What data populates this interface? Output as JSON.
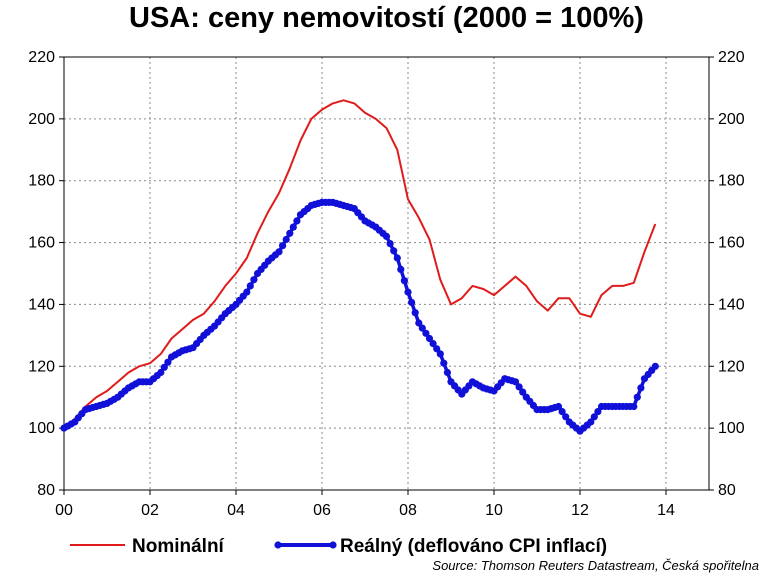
{
  "chart_data": {
    "type": "line",
    "title": "USA: ceny nemovitostí (2000 = 100%)",
    "source": "Source: Thomson Reuters Datastream, Česká spořitelna",
    "xlim": [
      0,
      15
    ],
    "ylim": [
      80,
      220
    ],
    "x_ticks": [
      0,
      2,
      4,
      6,
      8,
      10,
      12,
      14
    ],
    "x_tick_labels": [
      "00",
      "02",
      "04",
      "06",
      "08",
      "10",
      "12",
      "14"
    ],
    "y_ticks": [
      80,
      100,
      120,
      140,
      160,
      180,
      200,
      220
    ],
    "y_tick_labels": [
      "80",
      "100",
      "120",
      "140",
      "160",
      "180",
      "200",
      "220"
    ],
    "grid": true,
    "legend_position": "bottom",
    "colors": {
      "nominal": "#e11b1b",
      "real": "#1010d8"
    },
    "series": [
      {
        "name": "Nominální",
        "style": "line",
        "x": [
          0,
          0.25,
          0.5,
          0.75,
          1,
          1.25,
          1.5,
          1.75,
          2,
          2.25,
          2.5,
          2.75,
          3,
          3.25,
          3.5,
          3.75,
          4,
          4.25,
          4.5,
          4.75,
          5,
          5.25,
          5.5,
          5.75,
          6,
          6.25,
          6.5,
          6.75,
          7,
          7.25,
          7.5,
          7.75,
          8,
          8.25,
          8.5,
          8.75,
          9,
          9.25,
          9.5,
          9.75,
          10,
          10.25,
          10.5,
          10.75,
          11,
          11.25,
          11.5,
          11.75,
          12,
          12.25,
          12.5,
          12.75,
          13,
          13.25,
          13.5,
          13.75
        ],
        "values": [
          100,
          103,
          107,
          110,
          112,
          115,
          118,
          120,
          121,
          124,
          129,
          132,
          135,
          137,
          141,
          146,
          150,
          155,
          163,
          170,
          176,
          184,
          193,
          200,
          203,
          205,
          206,
          205,
          202,
          200,
          197,
          190,
          174,
          168,
          161,
          148,
          140,
          142,
          146,
          145,
          143,
          146,
          149,
          146,
          141,
          138,
          142,
          142,
          137,
          136,
          143,
          146,
          146,
          147,
          157,
          166
        ]
      },
      {
        "name": "Reálný (deflováno CPI inflací)",
        "style": "line-markers",
        "x": [
          0,
          0.25,
          0.5,
          0.75,
          1,
          1.25,
          1.5,
          1.75,
          2,
          2.25,
          2.5,
          2.75,
          3,
          3.25,
          3.5,
          3.75,
          4,
          4.25,
          4.5,
          4.75,
          5,
          5.25,
          5.5,
          5.75,
          6,
          6.25,
          6.5,
          6.75,
          7,
          7.25,
          7.5,
          7.75,
          8,
          8.25,
          8.5,
          8.75,
          9,
          9.25,
          9.5,
          9.75,
          10,
          10.25,
          10.5,
          10.75,
          11,
          11.25,
          11.5,
          11.75,
          12,
          12.25,
          12.5,
          12.75,
          13,
          13.25,
          13.5,
          13.75
        ],
        "values": [
          100,
          102,
          106,
          107,
          108,
          110,
          113,
          115,
          115,
          118,
          123,
          125,
          126,
          130,
          133,
          137,
          140,
          144,
          150,
          154,
          157,
          163,
          169,
          172,
          173,
          173,
          172,
          171,
          167,
          165,
          162,
          155,
          144,
          134,
          129,
          124,
          115,
          111,
          115,
          113,
          112,
          116,
          115,
          110,
          106,
          106,
          107,
          102,
          99,
          102,
          107,
          107,
          107,
          107,
          116,
          120
        ]
      }
    ]
  }
}
